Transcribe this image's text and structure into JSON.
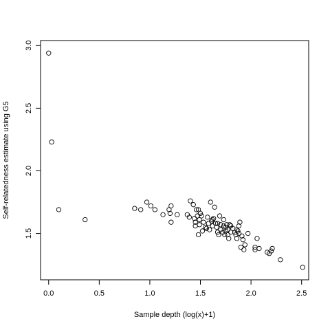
{
  "chart_data": {
    "type": "scatter",
    "title": "",
    "xlabel": "Sample depth (log(x)+1)",
    "ylabel": "Self-relatedness estimate using G5",
    "xlim": [
      -0.08,
      2.57
    ],
    "ylim": [
      1.13,
      3.04
    ],
    "x_ticks": [
      0.0,
      0.5,
      1.0,
      1.5,
      2.0,
      2.5
    ],
    "x_tick_labels": [
      "0.0",
      "0.5",
      "1.0",
      "1.5",
      "2.0",
      "2.5"
    ],
    "y_ticks": [
      1.5,
      2.0,
      2.5,
      3.0
    ],
    "y_tick_labels": [
      "1.5",
      "2.0",
      "2.5",
      "3.0"
    ],
    "grid": false,
    "marker": "open-circle",
    "point_color": "#000000",
    "points": [
      [
        0.0,
        2.94
      ],
      [
        0.03,
        2.23
      ],
      [
        0.1,
        1.69
      ],
      [
        0.36,
        1.61
      ],
      [
        0.85,
        1.7
      ],
      [
        0.91,
        1.69
      ],
      [
        0.97,
        1.75
      ],
      [
        1.01,
        1.72
      ],
      [
        1.05,
        1.69
      ],
      [
        1.13,
        1.65
      ],
      [
        1.19,
        1.69
      ],
      [
        1.2,
        1.66
      ],
      [
        1.21,
        1.72
      ],
      [
        1.21,
        1.59
      ],
      [
        1.27,
        1.65
      ],
      [
        1.37,
        1.65
      ],
      [
        1.39,
        1.63
      ],
      [
        1.4,
        1.76
      ],
      [
        1.43,
        1.73
      ],
      [
        1.44,
        1.62
      ],
      [
        1.45,
        1.59
      ],
      [
        1.45,
        1.56
      ],
      [
        1.46,
        1.69
      ],
      [
        1.47,
        1.64
      ],
      [
        1.48,
        1.49
      ],
      [
        1.48,
        1.69
      ],
      [
        1.49,
        1.61
      ],
      [
        1.49,
        1.57
      ],
      [
        1.5,
        1.66
      ],
      [
        1.51,
        1.64
      ],
      [
        1.52,
        1.52
      ],
      [
        1.53,
        1.59
      ],
      [
        1.55,
        1.55
      ],
      [
        1.56,
        1.54
      ],
      [
        1.57,
        1.63
      ],
      [
        1.58,
        1.58
      ],
      [
        1.59,
        1.53
      ],
      [
        1.6,
        1.75
      ],
      [
        1.61,
        1.6
      ],
      [
        1.62,
        1.56
      ],
      [
        1.62,
        1.61
      ],
      [
        1.63,
        1.62
      ],
      [
        1.64,
        1.71
      ],
      [
        1.65,
        1.58
      ],
      [
        1.66,
        1.55
      ],
      [
        1.67,
        1.51
      ],
      [
        1.67,
        1.58
      ],
      [
        1.68,
        1.49
      ],
      [
        1.69,
        1.64
      ],
      [
        1.7,
        1.57
      ],
      [
        1.7,
        1.53
      ],
      [
        1.72,
        1.51
      ],
      [
        1.73,
        1.61
      ],
      [
        1.73,
        1.56
      ],
      [
        1.74,
        1.49
      ],
      [
        1.75,
        1.55
      ],
      [
        1.75,
        1.52
      ],
      [
        1.76,
        1.57
      ],
      [
        1.77,
        1.49
      ],
      [
        1.77,
        1.53
      ],
      [
        1.78,
        1.46
      ],
      [
        1.79,
        1.57
      ],
      [
        1.8,
        1.56
      ],
      [
        1.8,
        1.51
      ],
      [
        1.82,
        1.54
      ],
      [
        1.84,
        1.51
      ],
      [
        1.85,
        1.49
      ],
      [
        1.86,
        1.53
      ],
      [
        1.86,
        1.46
      ],
      [
        1.87,
        1.52
      ],
      [
        1.88,
        1.5
      ],
      [
        1.88,
        1.56
      ],
      [
        1.89,
        1.59
      ],
      [
        1.9,
        1.39
      ],
      [
        1.91,
        1.48
      ],
      [
        1.92,
        1.45
      ],
      [
        1.93,
        1.37
      ],
      [
        1.94,
        1.41
      ],
      [
        1.97,
        1.5
      ],
      [
        2.04,
        1.39
      ],
      [
        2.04,
        1.37
      ],
      [
        2.06,
        1.46
      ],
      [
        2.08,
        1.38
      ],
      [
        2.16,
        1.35
      ],
      [
        2.18,
        1.34
      ],
      [
        2.2,
        1.36
      ],
      [
        2.21,
        1.38
      ],
      [
        2.29,
        1.29
      ],
      [
        2.51,
        1.23
      ]
    ]
  }
}
